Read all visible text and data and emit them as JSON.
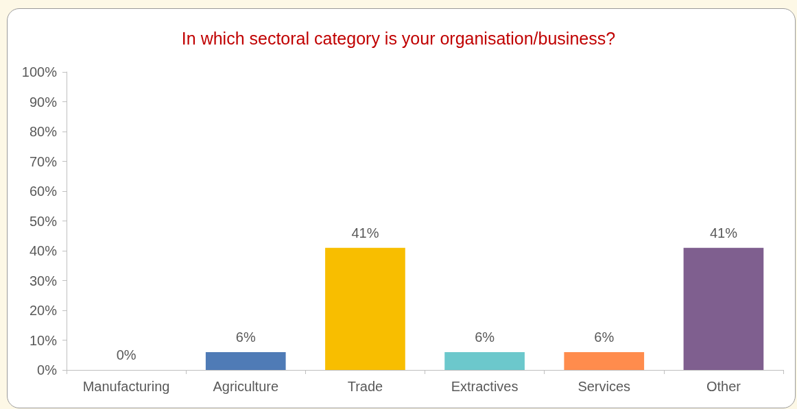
{
  "chart_data": {
    "type": "bar",
    "title": "In which sectoral category is your organisation/business?",
    "categories": [
      "Manufacturing",
      "Agriculture",
      "Trade",
      "Extractives",
      "Services",
      "Other"
    ],
    "values": [
      0,
      6,
      41,
      6,
      6,
      41
    ],
    "colors": [
      "#c0504d",
      "#4f7bb6",
      "#f8be00",
      "#6cc8cc",
      "#ff8c4d",
      "#7f5f8f"
    ],
    "value_labels": [
      "0%",
      "6%",
      "41%",
      "6%",
      "6%",
      "41%"
    ],
    "ylim": [
      0,
      100
    ],
    "yticks": [
      {
        "value": 0,
        "label": "0%"
      },
      {
        "value": 10,
        "label": "10%"
      },
      {
        "value": 20,
        "label": "20%"
      },
      {
        "value": 30,
        "label": "30%"
      },
      {
        "value": 40,
        "label": "40%"
      },
      {
        "value": 50,
        "label": "50%"
      },
      {
        "value": 60,
        "label": "60%"
      },
      {
        "value": 70,
        "label": "70%"
      },
      {
        "value": 80,
        "label": "80%"
      },
      {
        "value": 90,
        "label": "90%"
      },
      {
        "value": 100,
        "label": "100%"
      }
    ],
    "grid": false
  }
}
